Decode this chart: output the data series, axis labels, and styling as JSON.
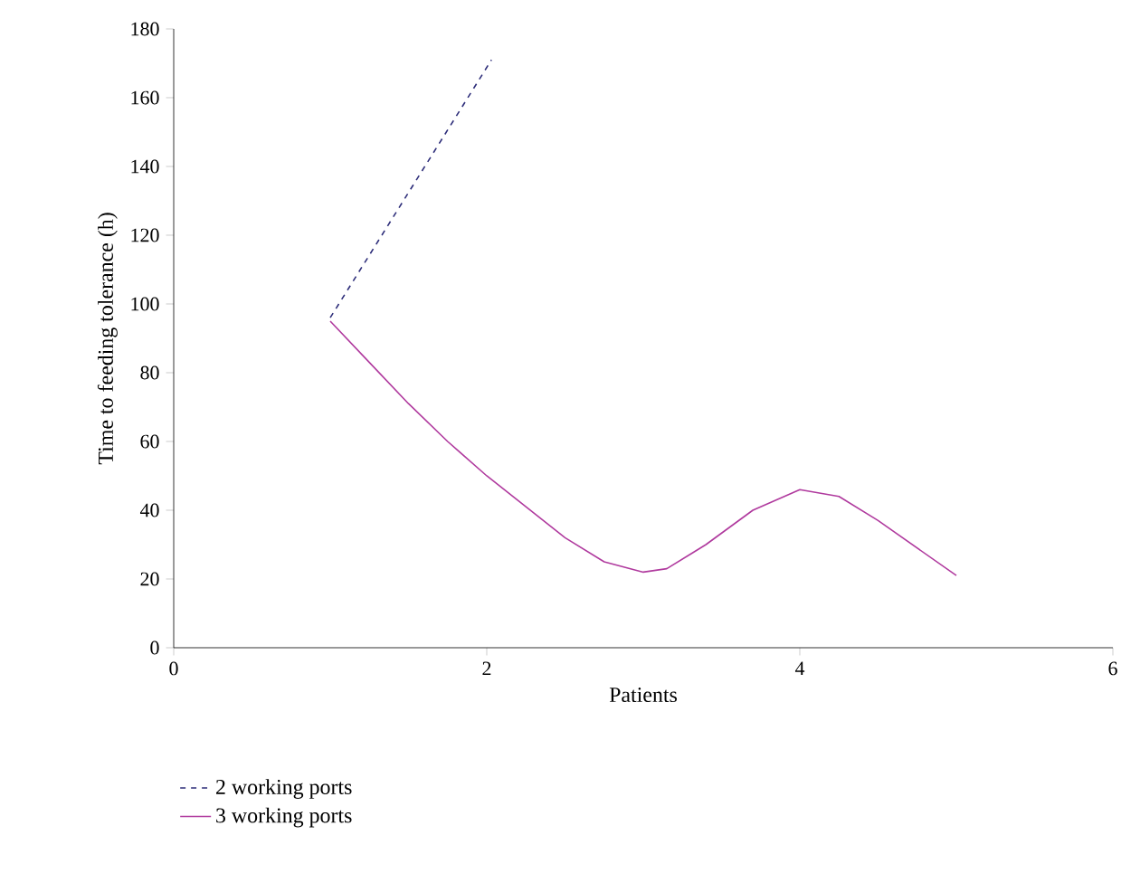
{
  "chart_data": {
    "type": "line",
    "xlabel": "Patients",
    "ylabel": "Time to feeding tolerance (h)",
    "xlim": [
      0,
      6
    ],
    "xticks": [
      0,
      2,
      4,
      6
    ],
    "ylim": [
      0,
      180
    ],
    "yticks": [
      0,
      20,
      40,
      60,
      80,
      100,
      120,
      140,
      160,
      180
    ],
    "grid": false,
    "legend": "bottom",
    "marker": "none",
    "series": [
      {
        "name": "2 working ports",
        "color": "#2e2e7a",
        "line_style": "dashed",
        "x": [
          1,
          2.03
        ],
        "values": [
          96,
          171
        ]
      },
      {
        "name": "3 working ports",
        "color": "#b03a9e",
        "line_style": "solid",
        "x": [
          1,
          1.25,
          1.5,
          1.75,
          2,
          2.25,
          2.5,
          2.75,
          3,
          3.15,
          3.4,
          3.7,
          4,
          4.25,
          4.5,
          4.75,
          5
        ],
        "values": [
          95,
          83,
          71,
          60,
          50,
          41,
          32,
          25,
          22,
          23,
          30,
          40,
          46,
          44,
          37,
          29,
          21
        ]
      }
    ]
  }
}
